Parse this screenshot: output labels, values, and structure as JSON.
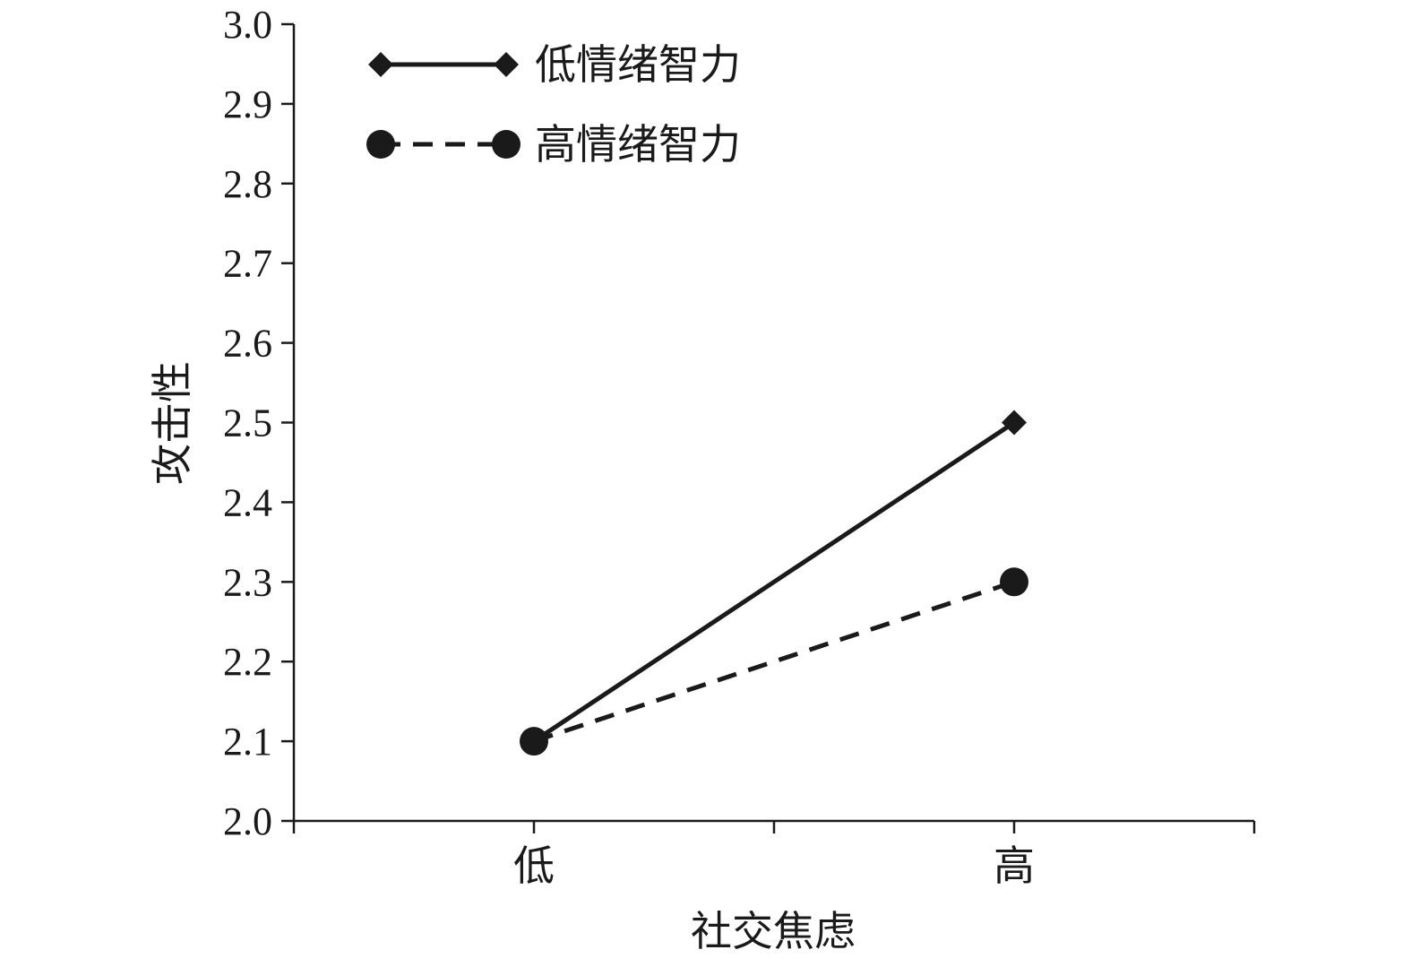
{
  "chart_data": {
    "type": "line",
    "title": "",
    "xlabel": "社交焦虑",
    "ylabel": "攻击性",
    "categories": [
      "低",
      "高"
    ],
    "ylim": [
      2.0,
      3.0
    ],
    "yticks": [
      "2.0",
      "2.1",
      "2.2",
      "2.3",
      "2.4",
      "2.5",
      "2.6",
      "2.7",
      "2.8",
      "2.9",
      "3.0"
    ],
    "grid": false,
    "legend_position": "top-left",
    "series": [
      {
        "name": "低情绪智力",
        "values": [
          2.1,
          2.5
        ],
        "line_style": "solid",
        "marker": "diamond",
        "color": "#1a1a1a"
      },
      {
        "name": "高情绪智力",
        "values": [
          2.1,
          2.3
        ],
        "line_style": "dashed",
        "marker": "circle",
        "color": "#1a1a1a"
      }
    ]
  }
}
